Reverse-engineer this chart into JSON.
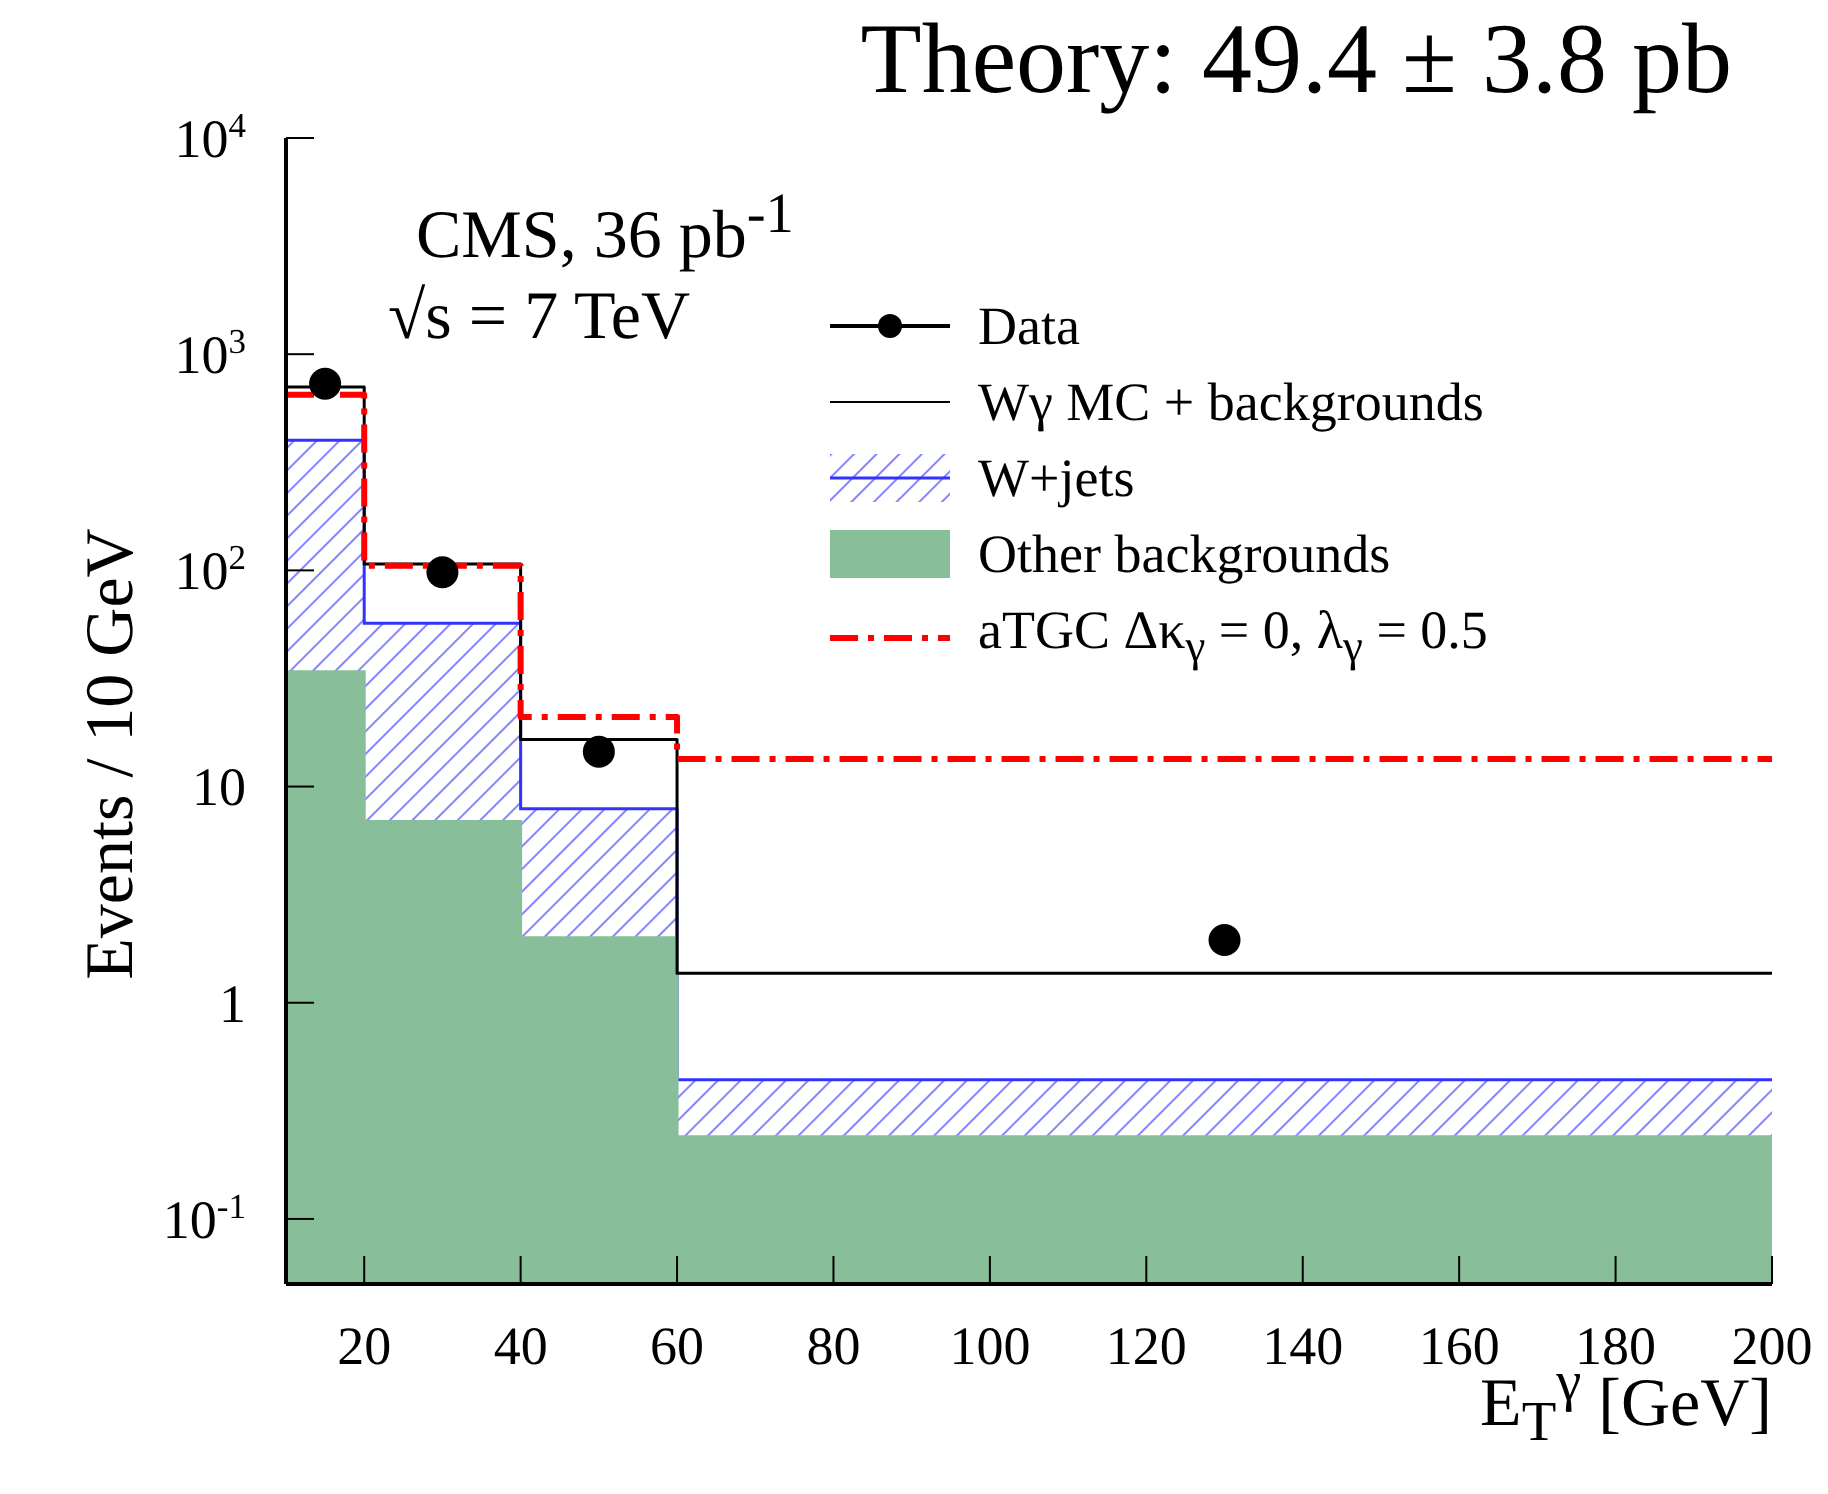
{
  "chart_data": {
    "type": "area",
    "title": "Theory: 49.4 ± 3.8 pb",
    "xlabel": "E$_{T}$$^{γ}$ [GeV]",
    "ylabel": "Events / 10 GeV",
    "annotations": [
      "CMS, 36 pb$^{-1}$",
      "√s = 7 TeV"
    ],
    "series": [
      {
        "name": "Data",
        "type": "scatter",
        "color": "#000000",
        "marker": "circle",
        "x": [
          15,
          30,
          50,
          130
        ],
        "values": [
          730,
          98,
          14.5,
          1.95
        ]
      },
      {
        "name": "Wγ MC + backgrounds",
        "type": "step",
        "color": "#000000",
        "line_style": "solid",
        "x": [
          10,
          20,
          40,
          60,
          200
        ],
        "values": [
          705,
          107,
          16.5,
          1.37,
          1.37
        ]
      },
      {
        "name": "W+jets",
        "color": "#3333ff",
        "x": [
          10,
          20,
          20,
          40,
          40,
          60,
          60,
          200
        ],
        "values": [
          400,
          400,
          57,
          57,
          7.9,
          7.9,
          0.44,
          0.44
        ]
      },
      {
        "name": "Other backgrounds",
        "color": "#88bf9a",
        "x": [
          10,
          20,
          20,
          40,
          40,
          60,
          60,
          200
        ],
        "values": [
          34,
          34,
          6.9,
          6.9,
          2.0,
          2.0,
          0.24,
          0.24
        ]
      },
      {
        "name": "aTGC Δκ$_{γ}$ = 0, λ$_{γ}$ = 0.5",
        "type": "step",
        "color": "#ff0000",
        "line_style": "dashed",
        "x": [
          10,
          20,
          40,
          60,
          200
        ],
        "values": [
          650,
          105,
          21,
          13.4,
          13.4
        ]
      }
    ],
    "xlim": [
      10,
      200
    ],
    "xticks": [
      20,
      40,
      60,
      80,
      100,
      120,
      140,
      160,
      180,
      200
    ],
    "ylim": [
      0.05,
      10000
    ],
    "log": "y",
    "yticks": [
      {
        "value": 0.1,
        "label": "10$^{-1}$"
      },
      1,
      10,
      {
        "value": 100,
        "label": "10$^{2}$"
      },
      {
        "value": 1000,
        "label": "10$^{3}$"
      },
      {
        "value": 10000,
        "label": "10$^{4}$"
      }
    ],
    "legend": "top right"
  }
}
